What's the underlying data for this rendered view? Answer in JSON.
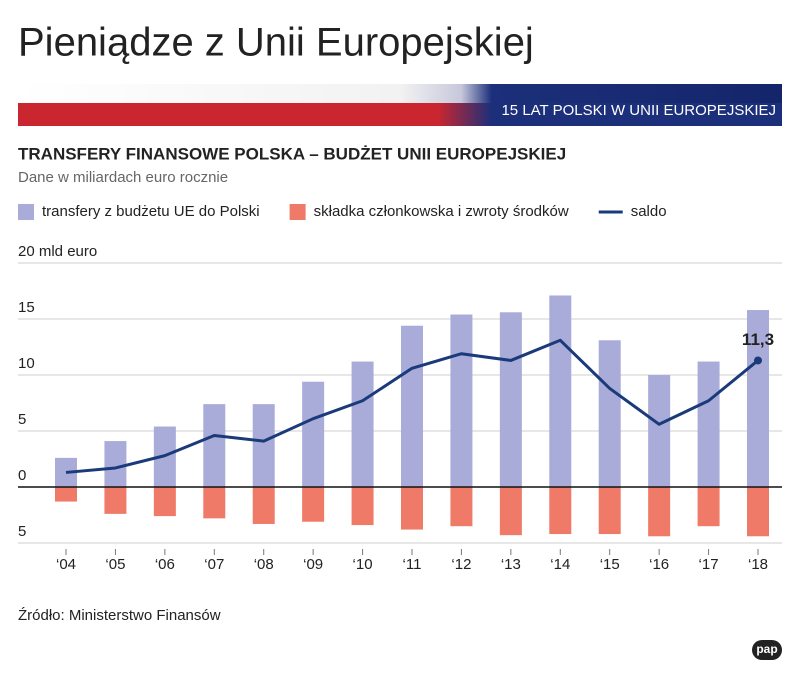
{
  "header": {
    "title": "Pieniądze z Unii Europejskiej",
    "banner": "15 LAT POLSKI W UNII EUROPEJSKIEJ"
  },
  "chart_data": {
    "type": "bar",
    "title": "TRANSFERY FINANSOWE POLSKA – BUDŻET UNII EUROPEJSKIEJ",
    "subtitle": "Dane w miliardach euro rocznie",
    "categories": [
      "‘04",
      "‘05",
      "‘06",
      "‘07",
      "‘08",
      "‘09",
      "‘10",
      "‘11",
      "‘12",
      "‘13",
      "‘14",
      "‘15",
      "‘16",
      "‘17",
      "‘18"
    ],
    "series": [
      {
        "name": "transfery z budżetu UE do Polski",
        "color": "#a9acd9",
        "type": "bar",
        "values": [
          2.6,
          4.1,
          5.4,
          7.4,
          7.4,
          9.4,
          11.2,
          14.4,
          15.4,
          15.6,
          17.1,
          13.1,
          10.0,
          11.2,
          15.8
        ]
      },
      {
        "name": "składka członkowska i zwroty środków",
        "color": "#ef7a68",
        "type": "bar",
        "values": [
          -1.3,
          -2.4,
          -2.6,
          -2.8,
          -3.3,
          -3.1,
          -3.4,
          -3.8,
          -3.5,
          -4.3,
          -4.2,
          -4.2,
          -4.4,
          -3.5,
          -4.4
        ]
      },
      {
        "name": "saldo",
        "color": "#1a3a7a",
        "type": "line",
        "values": [
          1.3,
          1.7,
          2.8,
          4.6,
          4.1,
          6.1,
          7.7,
          10.6,
          11.9,
          11.3,
          13.1,
          8.8,
          5.6,
          7.7,
          11.3
        ],
        "value_labels": [
          null,
          null,
          null,
          null,
          null,
          null,
          null,
          null,
          null,
          null,
          null,
          null,
          null,
          null,
          "11,3"
        ]
      }
    ],
    "ylim": [
      -5,
      20
    ],
    "yticks": [
      {
        "value": -5,
        "label": "5"
      },
      0,
      5,
      10,
      15,
      {
        "value": 20,
        "label": "20 mld euro"
      }
    ],
    "grid": true,
    "source": "Źródło: Ministerstwo Finansów"
  },
  "footer": {
    "logo": "pap"
  }
}
